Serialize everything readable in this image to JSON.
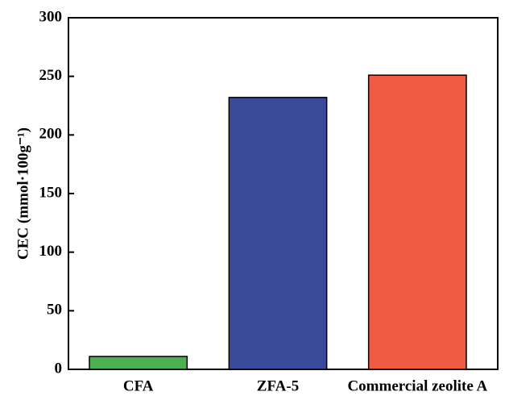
{
  "chart_data": {
    "type": "bar",
    "ylabel": "CEC (mmol·100g⁻¹)",
    "categories": [
      "CFA",
      "ZFA-5",
      "Commercial zeolite A"
    ],
    "values": [
      11,
      232,
      251
    ],
    "colors": [
      "#4cb050",
      "#3a4a9a",
      "#f05a43"
    ],
    "ylim": [
      0,
      300
    ],
    "yticks": [
      0,
      50,
      100,
      150,
      200,
      250,
      300
    ],
    "grid": false
  }
}
